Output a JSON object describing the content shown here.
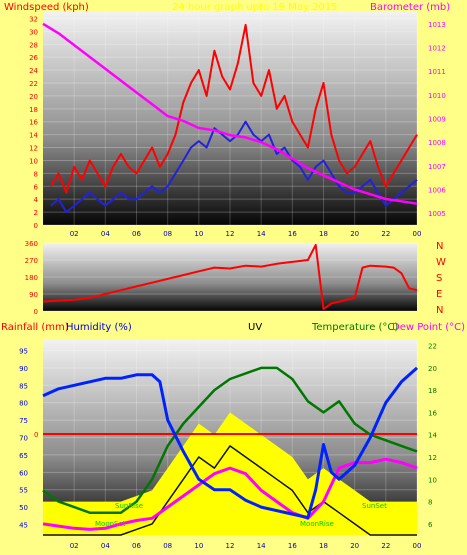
{
  "chart_data": [
    {
      "type": "line",
      "panel": "wind-baro",
      "left_label": "Windspeed (kph)",
      "right_label": "Barometer (mb)",
      "title": "24 hour graph upto 19 May 2015",
      "x_ticks": [
        "02",
        "04",
        "06",
        "08",
        "10",
        "12",
        "14",
        "16",
        "18",
        "20",
        "22",
        "00"
      ],
      "y_left_ticks": [
        "0",
        "2",
        "4",
        "6",
        "8",
        "10",
        "12",
        "14",
        "16",
        "18",
        "20",
        "22",
        "24",
        "26",
        "28",
        "30",
        "32"
      ],
      "y_left_range": [
        0,
        33
      ],
      "y_right_ticks": [
        "1005",
        "1006",
        "1007",
        "1008",
        "1009",
        "1010",
        "1011",
        "1012",
        "1013"
      ],
      "y_right_range": [
        1004.5,
        1013.5
      ],
      "series": [
        {
          "key": "gust",
          "color": "#ff0000",
          "x": [
            0.5,
            1,
            1.5,
            2,
            2.5,
            3,
            3.5,
            4,
            4.5,
            5,
            5.5,
            6,
            6.5,
            7,
            7.5,
            8,
            8.5,
            9,
            9.5,
            10,
            10.5,
            11,
            11.5,
            12,
            12.5,
            13,
            13.5,
            14,
            14.5,
            15,
            15.5,
            16,
            16.5,
            17,
            17.5,
            18,
            18.5,
            19,
            19.5,
            20,
            20.5,
            21,
            21.5,
            22,
            22.5,
            23,
            23.5,
            24
          ],
          "y": [
            6,
            8,
            5,
            9,
            7,
            10,
            8,
            6,
            9,
            11,
            9,
            8,
            10,
            12,
            9,
            11,
            14,
            19,
            22,
            24,
            20,
            27,
            23,
            21,
            25,
            31,
            22,
            20,
            24,
            18,
            20,
            16,
            14,
            12,
            18,
            22,
            14,
            10,
            8,
            9,
            11,
            13,
            9,
            6,
            8,
            10,
            12,
            14
          ]
        },
        {
          "key": "avg",
          "color": "#2222dd",
          "x": [
            0.5,
            1,
            1.5,
            2,
            2.5,
            3,
            3.5,
            4,
            4.5,
            5,
            5.5,
            6,
            6.5,
            7,
            7.5,
            8,
            8.5,
            9,
            9.5,
            10,
            10.5,
            11,
            11.5,
            12,
            12.5,
            13,
            13.5,
            14,
            14.5,
            15,
            15.5,
            16,
            16.5,
            17,
            17.5,
            18,
            18.5,
            19,
            19.5,
            20,
            20.5,
            21,
            21.5,
            22,
            22.5,
            23,
            23.5,
            24
          ],
          "y": [
            3,
            4,
            2,
            3,
            4,
            5,
            4,
            3,
            4,
            5,
            4,
            4,
            5,
            6,
            5,
            6,
            8,
            10,
            12,
            13,
            12,
            15,
            14,
            13,
            14,
            16,
            14,
            13,
            14,
            11,
            12,
            10,
            9,
            7,
            9,
            10,
            8,
            6,
            5,
            5,
            6,
            7,
            5,
            3,
            4,
            5,
            6,
            7
          ]
        },
        {
          "key": "baro",
          "axis": "right",
          "color": "#ff00ff",
          "x": [
            0,
            1,
            2,
            3,
            4,
            5,
            6,
            7,
            8,
            9,
            10,
            11,
            12,
            13,
            14,
            15,
            16,
            17,
            18,
            19,
            20,
            21,
            22,
            23,
            24
          ],
          "y": [
            1013,
            1012.6,
            1012.1,
            1011.6,
            1011.1,
            1010.6,
            1010.1,
            1009.6,
            1009.1,
            1008.9,
            1008.6,
            1008.5,
            1008.3,
            1008.2,
            1008.0,
            1007.7,
            1007.3,
            1006.9,
            1006.6,
            1006.3,
            1006.0,
            1005.8,
            1005.6,
            1005.5,
            1005.4
          ]
        }
      ]
    },
    {
      "type": "line",
      "panel": "direction",
      "y_ticks": [
        "360",
        "270",
        "180",
        "90",
        "0"
      ],
      "y_range": [
        0,
        360
      ],
      "direction_letters": [
        "N",
        "W",
        "S",
        "E",
        "N"
      ],
      "series": [
        {
          "key": "dir",
          "color": "#ff0000",
          "x": [
            0,
            1,
            2,
            3,
            4,
            5,
            6,
            7,
            8,
            9,
            10,
            11,
            12,
            13,
            14,
            15,
            16,
            17,
            17.5,
            18,
            18.5,
            19,
            20,
            20.5,
            21,
            22,
            22.5,
            23,
            23.5,
            24
          ],
          "y": [
            50,
            55,
            60,
            70,
            90,
            110,
            130,
            150,
            170,
            190,
            210,
            230,
            225,
            240,
            235,
            250,
            260,
            270,
            350,
            10,
            40,
            50,
            70,
            230,
            240,
            235,
            230,
            200,
            120,
            110
          ]
        }
      ]
    },
    {
      "type": "line",
      "panel": "temp-hum",
      "labels": [
        "Rainfall (mm)",
        "Humidity (%)",
        "UV",
        "Temperature (°C)",
        "Dew Point (°C)"
      ],
      "y_left_ticks": [
        "45",
        "50",
        "55",
        "60",
        "65",
        "70",
        "75",
        "80",
        "85",
        "90",
        "95"
      ],
      "y_left_range": [
        42,
        98
      ],
      "y_right_ticks": [
        "6",
        "8",
        "10",
        "12",
        "14",
        "16",
        "18",
        "20",
        "22"
      ],
      "y_right_range": [
        5,
        22.5
      ],
      "zero_label": "0",
      "annotations": [
        "SunRise",
        "MoonSet",
        "SunSet",
        "MoonRise"
      ],
      "series": [
        {
          "key": "humidity",
          "axis": "left",
          "color": "#0022ff",
          "x": [
            0,
            1,
            2,
            3,
            4,
            5,
            6,
            7,
            7.5,
            8,
            9,
            10,
            11,
            12,
            13,
            14,
            15,
            16,
            17,
            17.5,
            18,
            18.5,
            19,
            20,
            21,
            22,
            23,
            24
          ],
          "y": [
            82,
            84,
            85,
            86,
            87,
            87,
            88,
            88,
            86,
            75,
            66,
            58,
            55,
            55,
            52,
            50,
            49,
            48,
            47,
            55,
            68,
            60,
            58,
            62,
            70,
            80,
            86,
            90
          ]
        },
        {
          "key": "temperature",
          "axis": "right",
          "color": "#007700",
          "x": [
            0,
            1,
            2,
            3,
            4,
            5,
            6,
            7,
            8,
            9,
            10,
            11,
            12,
            13,
            14,
            15,
            16,
            17,
            18,
            19,
            20,
            21,
            22,
            23,
            24
          ],
          "y": [
            9,
            8,
            7.5,
            7,
            7,
            7,
            8,
            10,
            13,
            15,
            16.5,
            18,
            19,
            19.5,
            20,
            20,
            19,
            17,
            16,
            17,
            15,
            14,
            13.5,
            13,
            12.5
          ]
        },
        {
          "key": "dewpoint",
          "axis": "right",
          "color": "#ff00ff",
          "x": [
            0,
            1,
            2,
            3,
            4,
            5,
            6,
            7,
            8,
            9,
            10,
            11,
            12,
            13,
            14,
            15,
            16,
            17,
            18,
            19,
            20,
            21,
            22,
            23,
            24
          ],
          "y": [
            6,
            5.8,
            5.6,
            5.5,
            5.6,
            6,
            6.3,
            6.5,
            7.5,
            8.5,
            9.5,
            10.5,
            11,
            10.5,
            9,
            8,
            7,
            6.5,
            8,
            11,
            11.5,
            11.5,
            11.8,
            11.5,
            11
          ]
        },
        {
          "key": "uv",
          "axis": "right",
          "color": "#111111",
          "x": [
            0,
            4,
            5,
            6,
            7,
            8,
            9,
            10,
            11,
            12,
            13,
            14,
            15,
            16,
            17,
            18,
            19,
            20,
            21,
            24
          ],
          "y": [
            5,
            5,
            5,
            5.5,
            6,
            8,
            10,
            12,
            11,
            13,
            12,
            11,
            10,
            9,
            7,
            8,
            7,
            6,
            5,
            5
          ]
        }
      ]
    }
  ]
}
